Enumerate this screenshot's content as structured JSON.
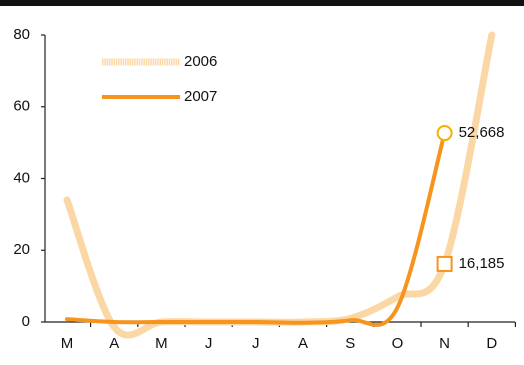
{
  "chart_data": {
    "type": "line",
    "categories": [
      "M",
      "A",
      "M",
      "J",
      "J",
      "A",
      "S",
      "O",
      "N",
      "D"
    ],
    "series": [
      {
        "name": "2006",
        "color": "#fcd7a6",
        "values": [
          34,
          -1.4,
          0,
          0,
          0,
          0,
          1,
          7,
          16.185,
          80
        ],
        "value_labels": [
          null,
          null,
          null,
          null,
          null,
          null,
          null,
          null,
          "16,185",
          null
        ]
      },
      {
        "name": "2007",
        "color": "#f7941d",
        "values": [
          0.8,
          0,
          0,
          0,
          0,
          -0.2,
          0.5,
          4,
          52.668,
          null
        ],
        "value_labels": [
          null,
          null,
          null,
          null,
          null,
          null,
          null,
          null,
          "52,668",
          null
        ]
      }
    ],
    "ylim": [
      0,
      80
    ],
    "yticks": [
      0,
      20,
      40,
      60,
      80
    ]
  }
}
